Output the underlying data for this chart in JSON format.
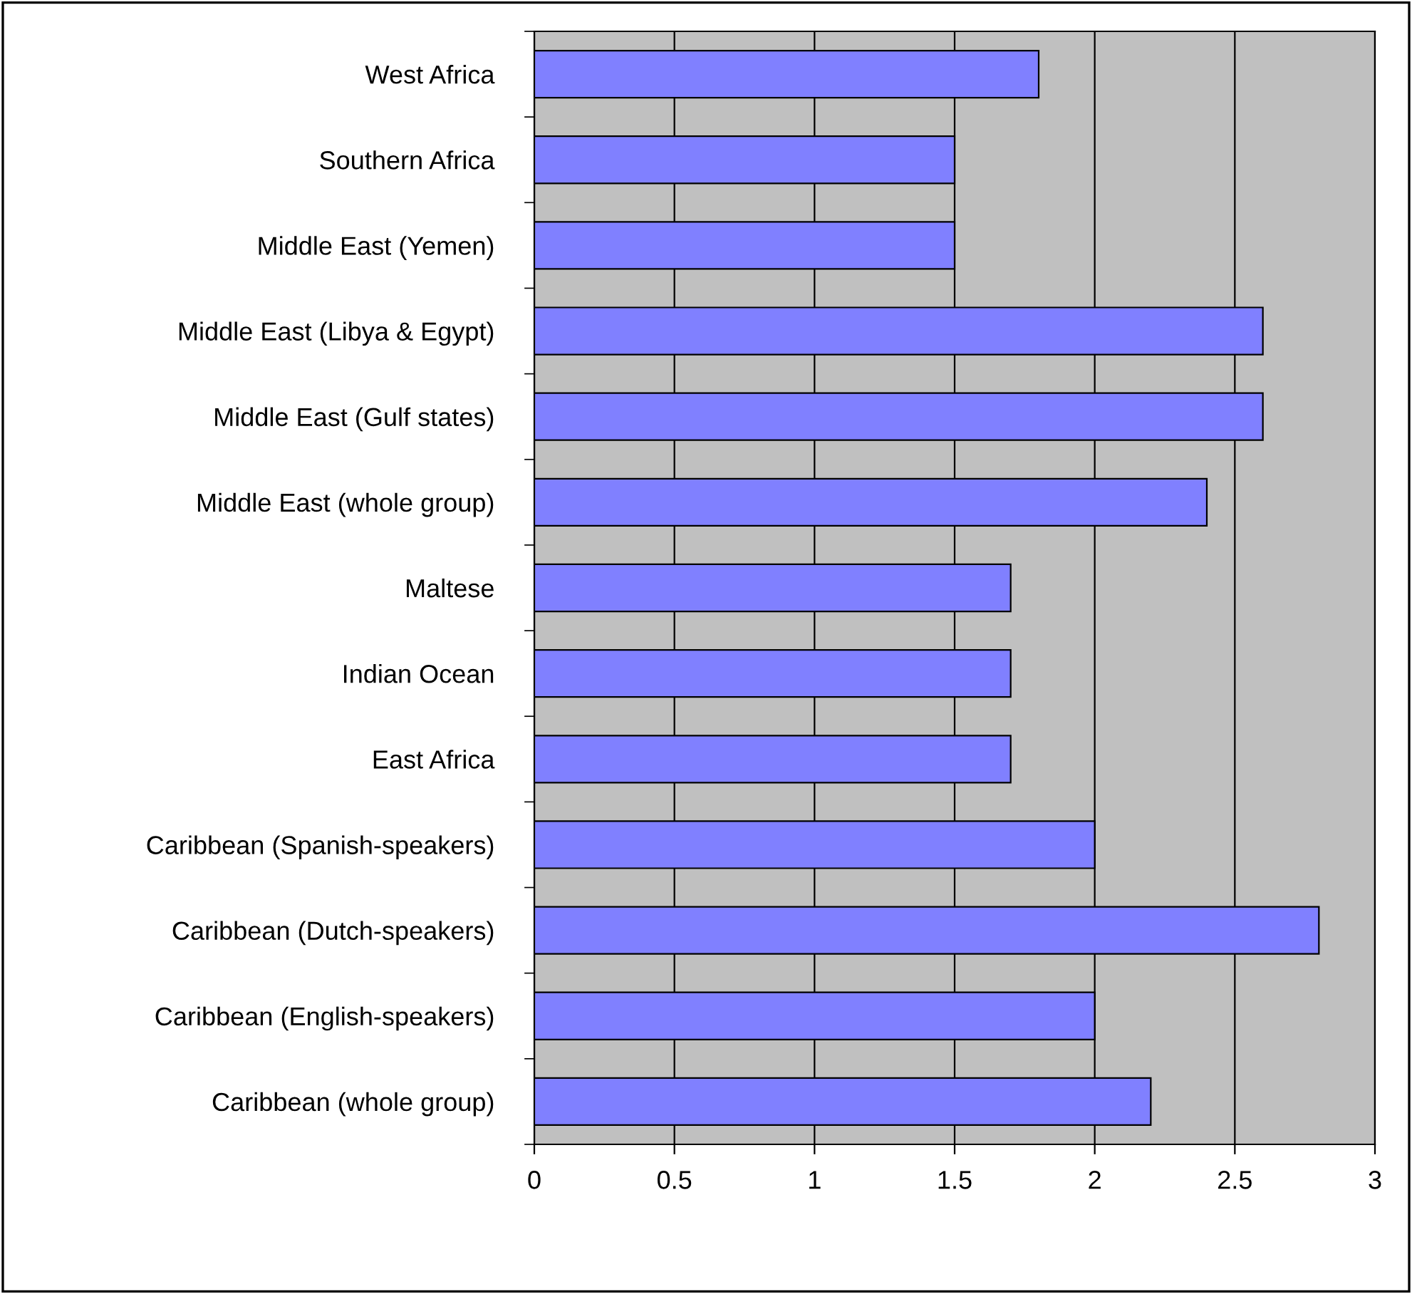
{
  "chart_data": {
    "type": "bar",
    "orientation": "horizontal",
    "categories": [
      "West Africa",
      "Southern Africa",
      "Middle East (Yemen)",
      "Middle East (Libya & Egypt)",
      "Middle East (Gulf states)",
      "Middle East (whole group)",
      "Maltese",
      "Indian Ocean",
      "East Africa",
      "Caribbean (Spanish-speakers)",
      "Caribbean (Dutch-speakers)",
      "Caribbean (English-speakers)",
      "Caribbean (whole group)"
    ],
    "values": [
      1.8,
      1.5,
      1.5,
      2.6,
      2.6,
      2.4,
      1.7,
      1.7,
      1.7,
      2.0,
      2.8,
      2.0,
      2.2
    ],
    "color": "#8080ff",
    "xlim": [
      0,
      3
    ],
    "xticks": [
      0,
      0.5,
      1,
      1.5,
      2,
      2.5,
      3
    ],
    "grid": "x"
  }
}
